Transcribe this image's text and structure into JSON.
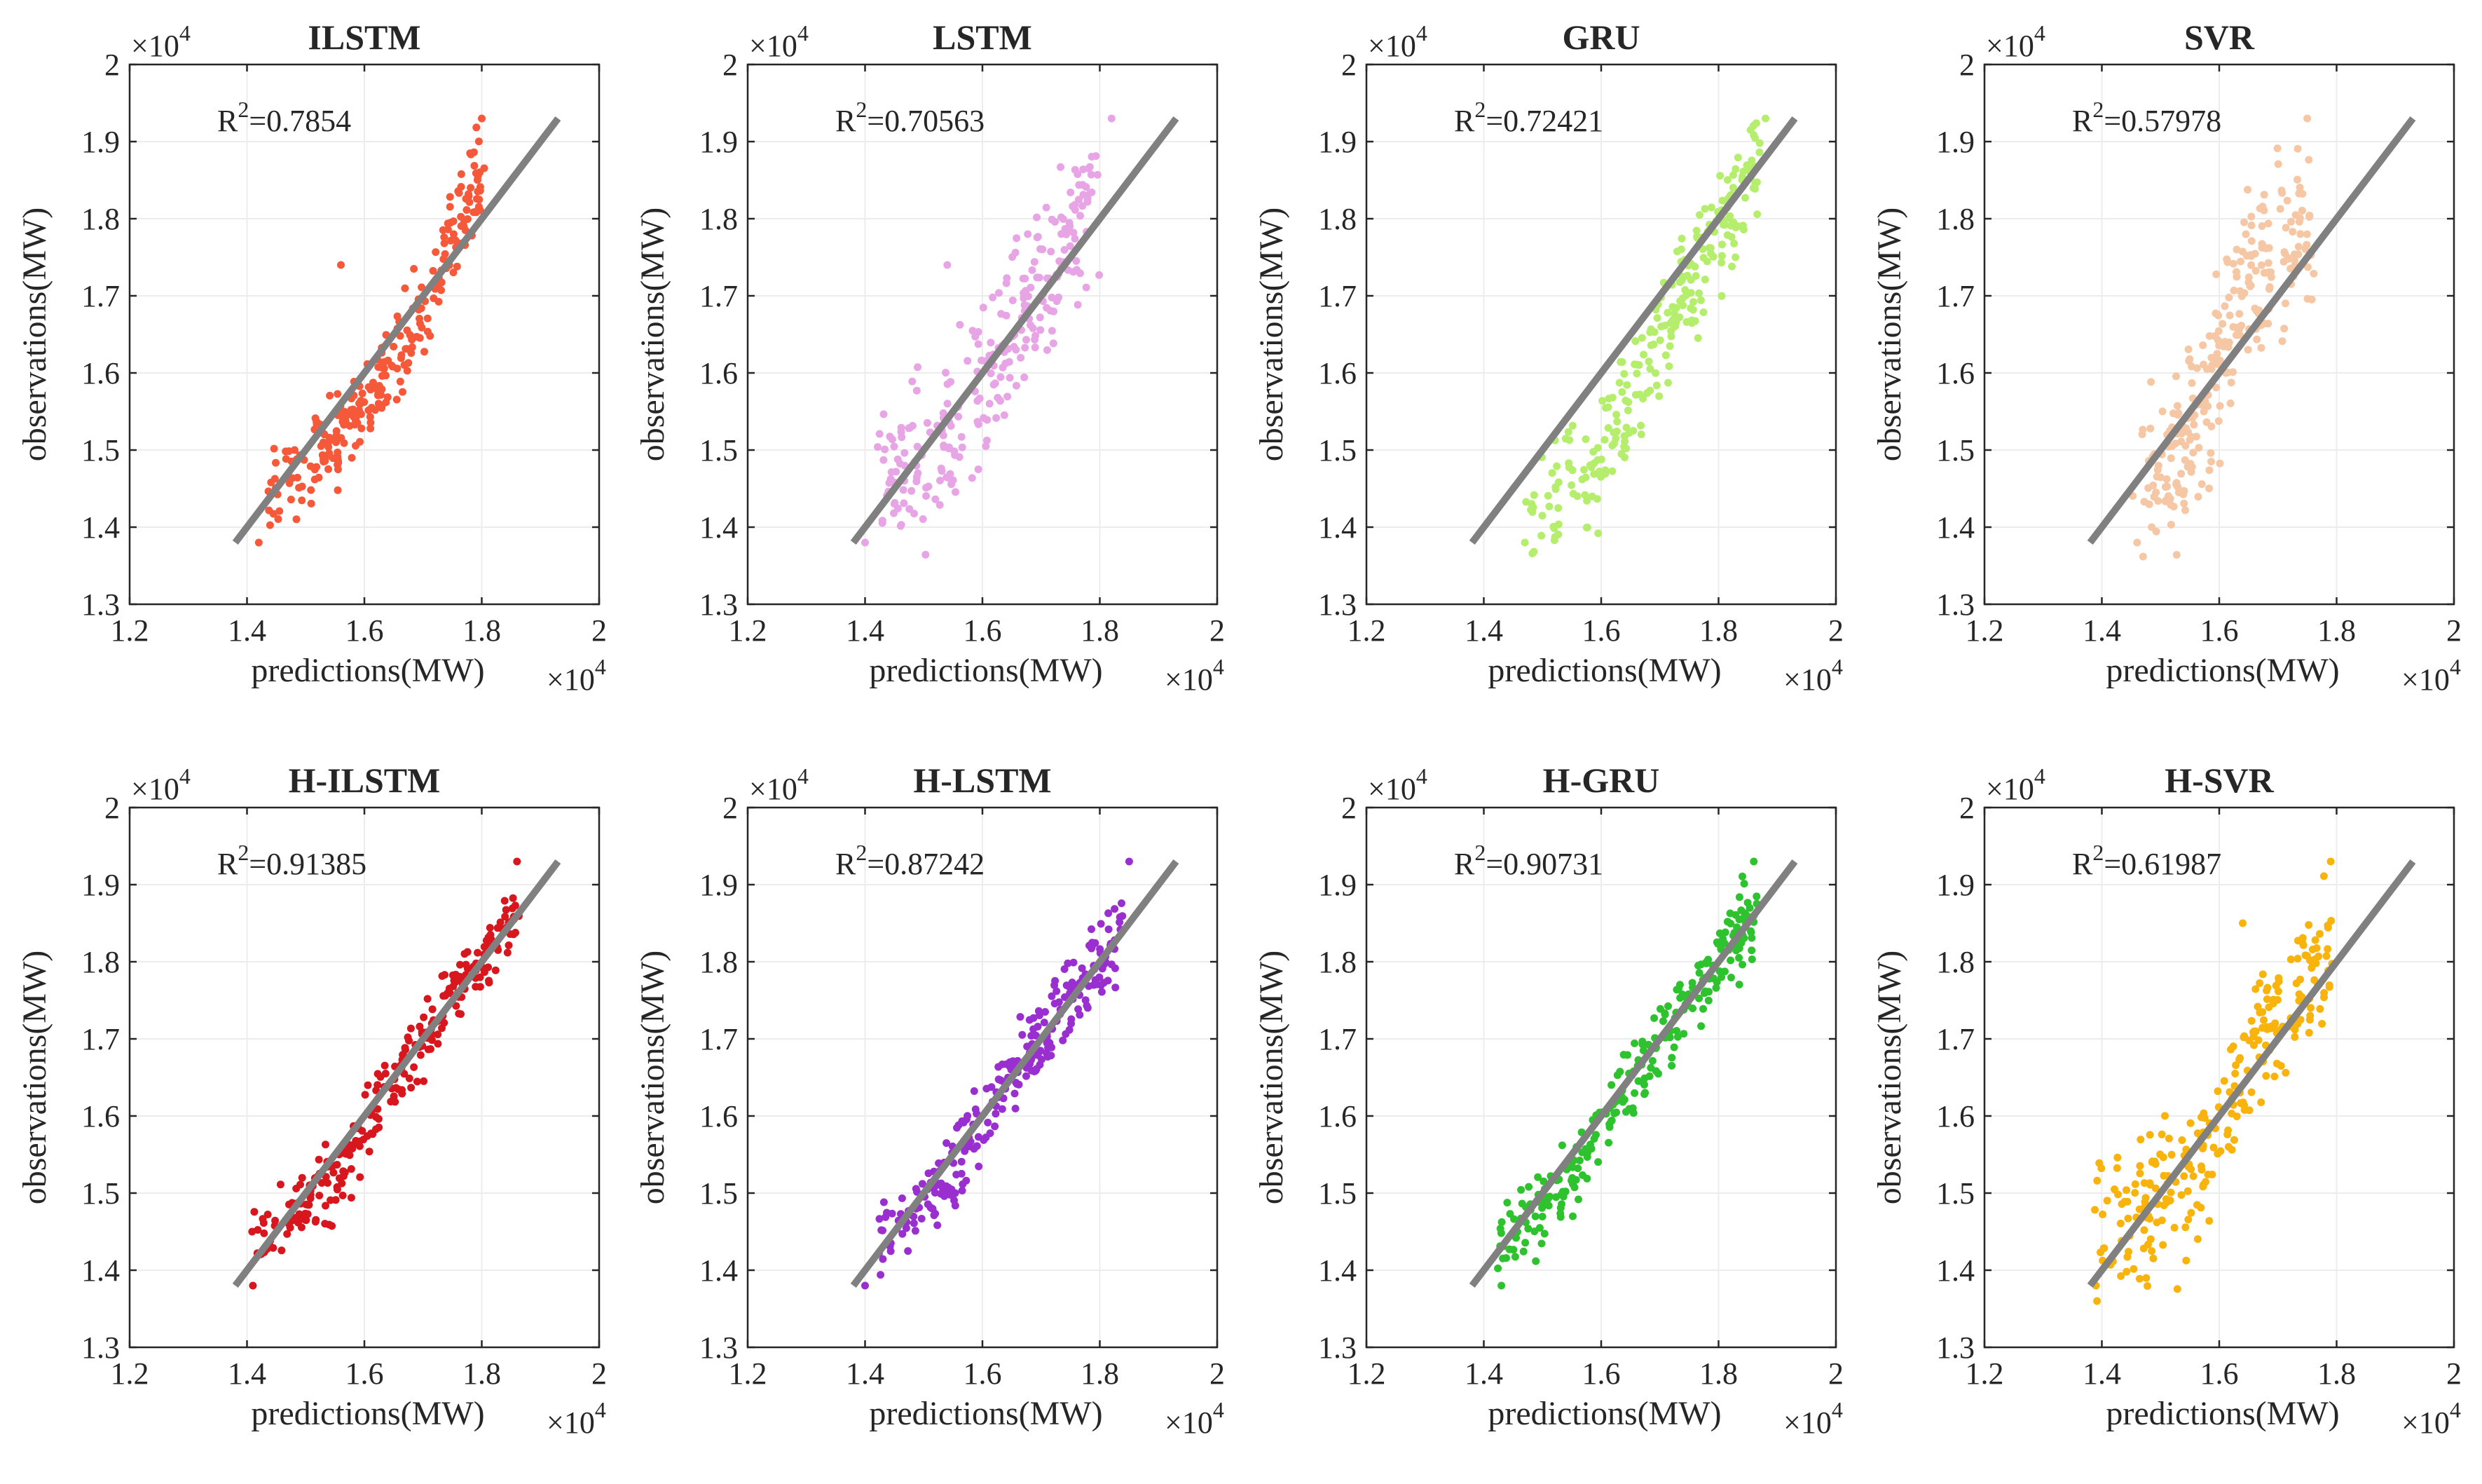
{
  "chart_data": [
    {
      "type": "scatter",
      "title": "ILSTM",
      "r2_label": "R",
      "r2_sup": "2",
      "r2_value": "=0.7854",
      "xlabel": "predictions(MW)",
      "ylabel": "observations(MW)",
      "x_multiplier": "×10",
      "x_exponent": "4",
      "y_multiplier": "×10",
      "y_exponent": "4",
      "xlim": [
        1.2,
        2
      ],
      "ylim": [
        1.3,
        2
      ],
      "xticks": [
        "1.2",
        "1.4",
        "1.6",
        "1.8",
        "2"
      ],
      "yticks": [
        "1.3",
        "1.4",
        "1.5",
        "1.6",
        "1.7",
        "1.8",
        "1.9",
        "2"
      ],
      "fit_line": [
        [
          1.38,
          1.38
        ],
        [
          1.93,
          1.93
        ]
      ],
      "color": "#f5593a",
      "cloud": {
        "x_start": 1.42,
        "x_end": 1.8,
        "curve": [
          [
            0,
            1.43
          ],
          [
            0.35,
            1.52
          ],
          [
            0.7,
            1.65
          ],
          [
            1.0,
            1.86
          ]
        ],
        "y_jitter": 0.09,
        "count": 260,
        "seed": 11
      },
      "outliers": [
        [
          1.56,
          1.74
        ],
        [
          1.42,
          1.38
        ],
        [
          1.8,
          1.93
        ]
      ]
    },
    {
      "type": "scatter",
      "title": "LSTM",
      "r2_label": "R",
      "r2_sup": "2",
      "r2_value": "=0.70563",
      "xlabel": "predictions(MW)",
      "ylabel": "observations(MW)",
      "x_multiplier": "×10",
      "x_exponent": "4",
      "y_multiplier": "×10",
      "y_exponent": "4",
      "xlim": [
        1.2,
        2
      ],
      "ylim": [
        1.3,
        2
      ],
      "xticks": [
        "1.2",
        "1.4",
        "1.6",
        "1.8",
        "2"
      ],
      "yticks": [
        "1.3",
        "1.4",
        "1.5",
        "1.6",
        "1.7",
        "1.8",
        "1.9",
        "2"
      ],
      "fit_line": [
        [
          1.38,
          1.38
        ],
        [
          1.93,
          1.93
        ]
      ],
      "color": "#e8a5e6",
      "cloud": {
        "x_start": 1.42,
        "x_end": 1.8,
        "curve": [
          [
            0,
            1.44
          ],
          [
            0.35,
            1.53
          ],
          [
            0.7,
            1.7
          ],
          [
            1.0,
            1.84
          ]
        ],
        "y_jitter": 0.15,
        "count": 260,
        "seed": 23
      },
      "outliers": [
        [
          1.4,
          1.38
        ],
        [
          1.82,
          1.93
        ],
        [
          1.54,
          1.74
        ]
      ]
    },
    {
      "type": "scatter",
      "title": "GRU",
      "r2_label": "R",
      "r2_sup": "2",
      "r2_value": "=0.72421",
      "xlabel": "predictions(MW)",
      "ylabel": "observations(MW)",
      "x_multiplier": "×10",
      "x_exponent": "4",
      "y_multiplier": "×10",
      "y_exponent": "4",
      "xlim": [
        1.2,
        2
      ],
      "ylim": [
        1.3,
        2
      ],
      "xticks": [
        "1.2",
        "1.4",
        "1.6",
        "1.8",
        "2"
      ],
      "yticks": [
        "1.3",
        "1.4",
        "1.5",
        "1.6",
        "1.7",
        "1.8",
        "1.9",
        "2"
      ],
      "fit_line": [
        [
          1.38,
          1.38
        ],
        [
          1.93,
          1.93
        ]
      ],
      "color": "#b5ee6c",
      "cloud": {
        "x_start": 1.47,
        "x_end": 1.87,
        "curve": [
          [
            0,
            1.43
          ],
          [
            0.3,
            1.48
          ],
          [
            0.6,
            1.66
          ],
          [
            1.0,
            1.88
          ]
        ],
        "y_jitter": 0.11,
        "count": 260,
        "seed": 37
      },
      "outliers": [
        [
          1.47,
          1.38
        ],
        [
          1.88,
          1.93
        ]
      ]
    },
    {
      "type": "scatter",
      "title": "SVR",
      "r2_label": "R",
      "r2_sup": "2",
      "r2_value": "=0.57978",
      "xlabel": "predictions(MW)",
      "ylabel": "observations(MW)",
      "x_multiplier": "×10",
      "x_exponent": "4",
      "y_multiplier": "×10",
      "y_exponent": "4",
      "xlim": [
        1.2,
        2
      ],
      "ylim": [
        1.3,
        2
      ],
      "xticks": [
        "1.2",
        "1.4",
        "1.6",
        "1.8",
        "2"
      ],
      "yticks": [
        "1.3",
        "1.4",
        "1.5",
        "1.6",
        "1.7",
        "1.8",
        "1.9",
        "2"
      ],
      "fit_line": [
        [
          1.38,
          1.38
        ],
        [
          1.93,
          1.93
        ]
      ],
      "color": "#f6c7a4",
      "cloud": {
        "x_start": 1.45,
        "x_end": 1.76,
        "curve": [
          [
            0,
            1.44
          ],
          [
            0.35,
            1.52
          ],
          [
            0.6,
            1.7
          ],
          [
            1.0,
            1.8
          ]
        ],
        "y_jitter": 0.17,
        "count": 260,
        "seed": 53
      },
      "outliers": [
        [
          1.46,
          1.38
        ],
        [
          1.75,
          1.93
        ]
      ]
    },
    {
      "type": "scatter",
      "title": "H-ILSTM",
      "r2_label": "R",
      "r2_sup": "2",
      "r2_value": "=0.91385",
      "xlabel": "predictions(MW)",
      "ylabel": "observations(MW)",
      "x_multiplier": "×10",
      "x_exponent": "4",
      "y_multiplier": "×10",
      "y_exponent": "4",
      "xlim": [
        1.2,
        2
      ],
      "ylim": [
        1.3,
        2
      ],
      "xticks": [
        "1.2",
        "1.4",
        "1.6",
        "1.8",
        "2"
      ],
      "yticks": [
        "1.3",
        "1.4",
        "1.5",
        "1.6",
        "1.7",
        "1.8",
        "1.9",
        "2"
      ],
      "fit_line": [
        [
          1.38,
          1.38
        ],
        [
          1.93,
          1.93
        ]
      ],
      "color": "#d8161e",
      "cloud": {
        "x_start": 1.41,
        "x_end": 1.86,
        "curve": [
          [
            0,
            1.44
          ],
          [
            0.3,
            1.51
          ],
          [
            0.6,
            1.68
          ],
          [
            1.0,
            1.86
          ]
        ],
        "y_jitter": 0.07,
        "count": 260,
        "seed": 71
      },
      "outliers": [
        [
          1.41,
          1.38
        ],
        [
          1.86,
          1.93
        ]
      ]
    },
    {
      "type": "scatter",
      "title": "H-LSTM",
      "r2_label": "R",
      "r2_sup": "2",
      "r2_value": "=0.87242",
      "xlabel": "predictions(MW)",
      "ylabel": "observations(MW)",
      "x_multiplier": "×10",
      "x_exponent": "4",
      "y_multiplier": "×10",
      "y_exponent": "4",
      "xlim": [
        1.2,
        2
      ],
      "ylim": [
        1.3,
        2
      ],
      "xticks": [
        "1.2",
        "1.4",
        "1.6",
        "1.8",
        "2"
      ],
      "yticks": [
        "1.3",
        "1.4",
        "1.5",
        "1.6",
        "1.7",
        "1.8",
        "1.9",
        "2"
      ],
      "fit_line": [
        [
          1.38,
          1.38
        ],
        [
          1.93,
          1.93
        ]
      ],
      "color": "#9a2fd0",
      "cloud": {
        "x_start": 1.42,
        "x_end": 1.84,
        "curve": [
          [
            0,
            1.44
          ],
          [
            0.3,
            1.52
          ],
          [
            0.6,
            1.68
          ],
          [
            1.0,
            1.84
          ]
        ],
        "y_jitter": 0.08,
        "count": 260,
        "seed": 89
      },
      "outliers": [
        [
          1.4,
          1.38
        ],
        [
          1.85,
          1.93
        ]
      ]
    },
    {
      "type": "scatter",
      "title": "H-GRU",
      "r2_label": "R",
      "r2_sup": "2",
      "r2_value": "=0.90731",
      "xlabel": "predictions(MW)",
      "ylabel": "observations(MW)",
      "x_multiplier": "×10",
      "x_exponent": "4",
      "y_multiplier": "×10",
      "y_exponent": "4",
      "xlim": [
        1.2,
        2
      ],
      "ylim": [
        1.3,
        2
      ],
      "xticks": [
        "1.2",
        "1.4",
        "1.6",
        "1.8",
        "2"
      ],
      "yticks": [
        "1.3",
        "1.4",
        "1.5",
        "1.6",
        "1.7",
        "1.8",
        "1.9",
        "2"
      ],
      "fit_line": [
        [
          1.38,
          1.38
        ],
        [
          1.93,
          1.93
        ]
      ],
      "color": "#2ec22e",
      "cloud": {
        "x_start": 1.42,
        "x_end": 1.86,
        "curve": [
          [
            0,
            1.43
          ],
          [
            0.3,
            1.52
          ],
          [
            0.6,
            1.68
          ],
          [
            1.0,
            1.86
          ]
        ],
        "y_jitter": 0.07,
        "count": 260,
        "seed": 97
      },
      "outliers": [
        [
          1.43,
          1.38
        ],
        [
          1.86,
          1.93
        ]
      ]
    },
    {
      "type": "scatter",
      "title": "H-SVR",
      "r2_label": "R",
      "r2_sup": "2",
      "r2_value": "=0.61987",
      "xlabel": "predictions(MW)",
      "ylabel": "observations(MW)",
      "x_multiplier": "×10",
      "x_exponent": "4",
      "y_multiplier": "×10",
      "y_exponent": "4",
      "xlim": [
        1.2,
        2
      ],
      "ylim": [
        1.3,
        2
      ],
      "xticks": [
        "1.2",
        "1.4",
        "1.6",
        "1.8",
        "2"
      ],
      "yticks": [
        "1.3",
        "1.4",
        "1.5",
        "1.6",
        "1.7",
        "1.8",
        "1.9",
        "2"
      ],
      "fit_line": [
        [
          1.38,
          1.38
        ],
        [
          1.93,
          1.93
        ]
      ],
      "color": "#f8b40c",
      "cloud": {
        "x_start": 1.39,
        "x_end": 1.79,
        "curve": [
          [
            0,
            1.45
          ],
          [
            0.4,
            1.5
          ],
          [
            0.7,
            1.7
          ],
          [
            1.0,
            1.82
          ]
        ],
        "y_jitter": 0.14,
        "count": 260,
        "seed": 113
      },
      "outliers": [
        [
          1.39,
          1.38
        ],
        [
          1.79,
          1.93
        ],
        [
          1.64,
          1.85
        ]
      ]
    }
  ]
}
